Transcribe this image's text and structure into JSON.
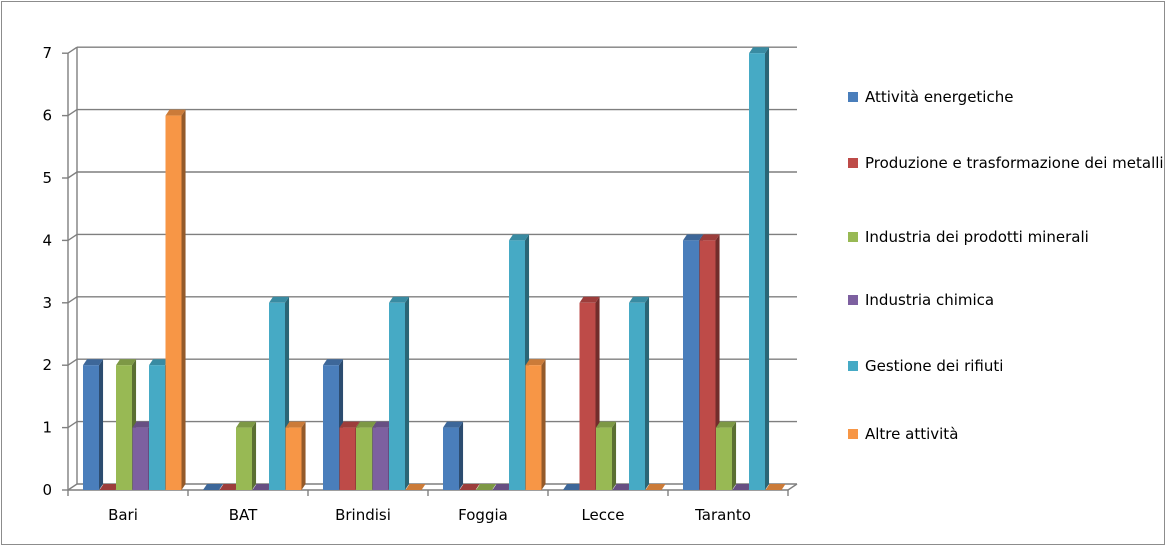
{
  "chart_data": {
    "type": "bar",
    "style": "3d-clustered",
    "categories": [
      "Bari",
      "BAT",
      "Brindisi",
      "Foggia",
      "Lecce",
      "Taranto"
    ],
    "series": [
      {
        "name": "Attività energetiche",
        "color": "#4a7ebb",
        "values": [
          2,
          0,
          2,
          1,
          0,
          4
        ]
      },
      {
        "name": "Produzione e trasformazione dei metalli",
        "color": "#be4b48",
        "values": [
          0,
          0,
          1,
          0,
          3,
          4
        ]
      },
      {
        "name": "Industria dei prodotti minerali",
        "color": "#98b954",
        "values": [
          2,
          1,
          1,
          0,
          1,
          1
        ]
      },
      {
        "name": "Industria chimica",
        "color": "#7d60a0",
        "values": [
          1,
          0,
          1,
          0,
          0,
          0
        ]
      },
      {
        "name": "Gestione dei rifiuti",
        "color": "#46aac5",
        "values": [
          2,
          3,
          3,
          4,
          3,
          7
        ]
      },
      {
        "name": "Altre attività",
        "color": "#f79646",
        "values": [
          6,
          1,
          0,
          2,
          0,
          0
        ]
      }
    ],
    "y_ticks": [
      "0",
      "1",
      "2",
      "3",
      "4",
      "5",
      "6",
      "7"
    ],
    "ylim": [
      0,
      7
    ],
    "grid": true,
    "legend_position": "right"
  }
}
